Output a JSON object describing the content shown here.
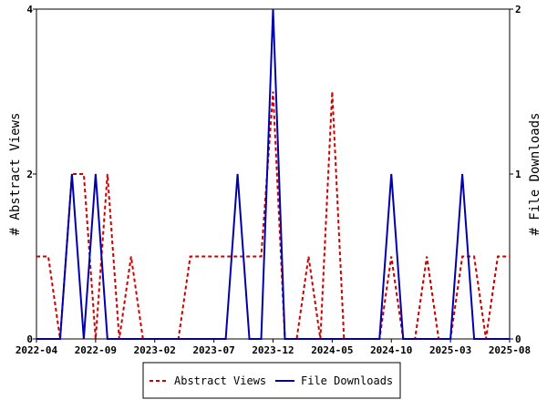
{
  "chart_data": {
    "type": "line",
    "x": [
      "2022-04",
      "2022-05",
      "2022-06",
      "2022-07",
      "2022-08",
      "2022-09",
      "2022-10",
      "2022-11",
      "2022-12",
      "2023-01",
      "2023-02",
      "2023-03",
      "2023-04",
      "2023-05",
      "2023-06",
      "2023-07",
      "2023-08",
      "2023-09",
      "2023-10",
      "2023-11",
      "2023-12",
      "2024-01",
      "2024-02",
      "2024-03",
      "2024-04",
      "2024-05",
      "2024-06",
      "2024-07",
      "2024-08",
      "2024-09",
      "2024-10",
      "2024-11",
      "2024-12",
      "2025-01",
      "2025-02",
      "2025-03",
      "2025-04",
      "2025-05",
      "2025-06",
      "2025-07",
      "2025-08"
    ],
    "x_ticks": [
      "2022-04",
      "2022-09",
      "2023-02",
      "2023-07",
      "2023-12",
      "2024-05",
      "2024-10",
      "2025-03",
      "2025-08"
    ],
    "series": [
      {
        "name": "Abstract Views",
        "axis": "left",
        "color": "#cc0000",
        "dash": true,
        "values": [
          1,
          1,
          0,
          2,
          2,
          0,
          2,
          0,
          1,
          0,
          0,
          0,
          0,
          1,
          1,
          1,
          1,
          1,
          1,
          1,
          3,
          0,
          0,
          1,
          0,
          3,
          0,
          0,
          0,
          0,
          1,
          0,
          0,
          1,
          0,
          0,
          1,
          1,
          0,
          1,
          1
        ]
      },
      {
        "name": "File Downloads",
        "axis": "right",
        "color": "#0000aa",
        "dash": false,
        "values": [
          0,
          0,
          0,
          1,
          0,
          1,
          0,
          0,
          0,
          0,
          0,
          0,
          0,
          0,
          0,
          0,
          0,
          1,
          0,
          0,
          2,
          0,
          0,
          0,
          0,
          0,
          0,
          0,
          0,
          0,
          1,
          0,
          0,
          0,
          0,
          0,
          1,
          0,
          0,
          0,
          0
        ]
      }
    ],
    "ylabel_left": "# Abstract Views",
    "ylabel_right": "# File Downloads",
    "ylim_left": [
      0,
      4
    ],
    "ylim_right": [
      0,
      2
    ],
    "yticks_left": [
      "0",
      "2",
      "4"
    ],
    "yticks_right": [
      "0",
      "1",
      "2"
    ],
    "legend_position": "bottom-center"
  }
}
